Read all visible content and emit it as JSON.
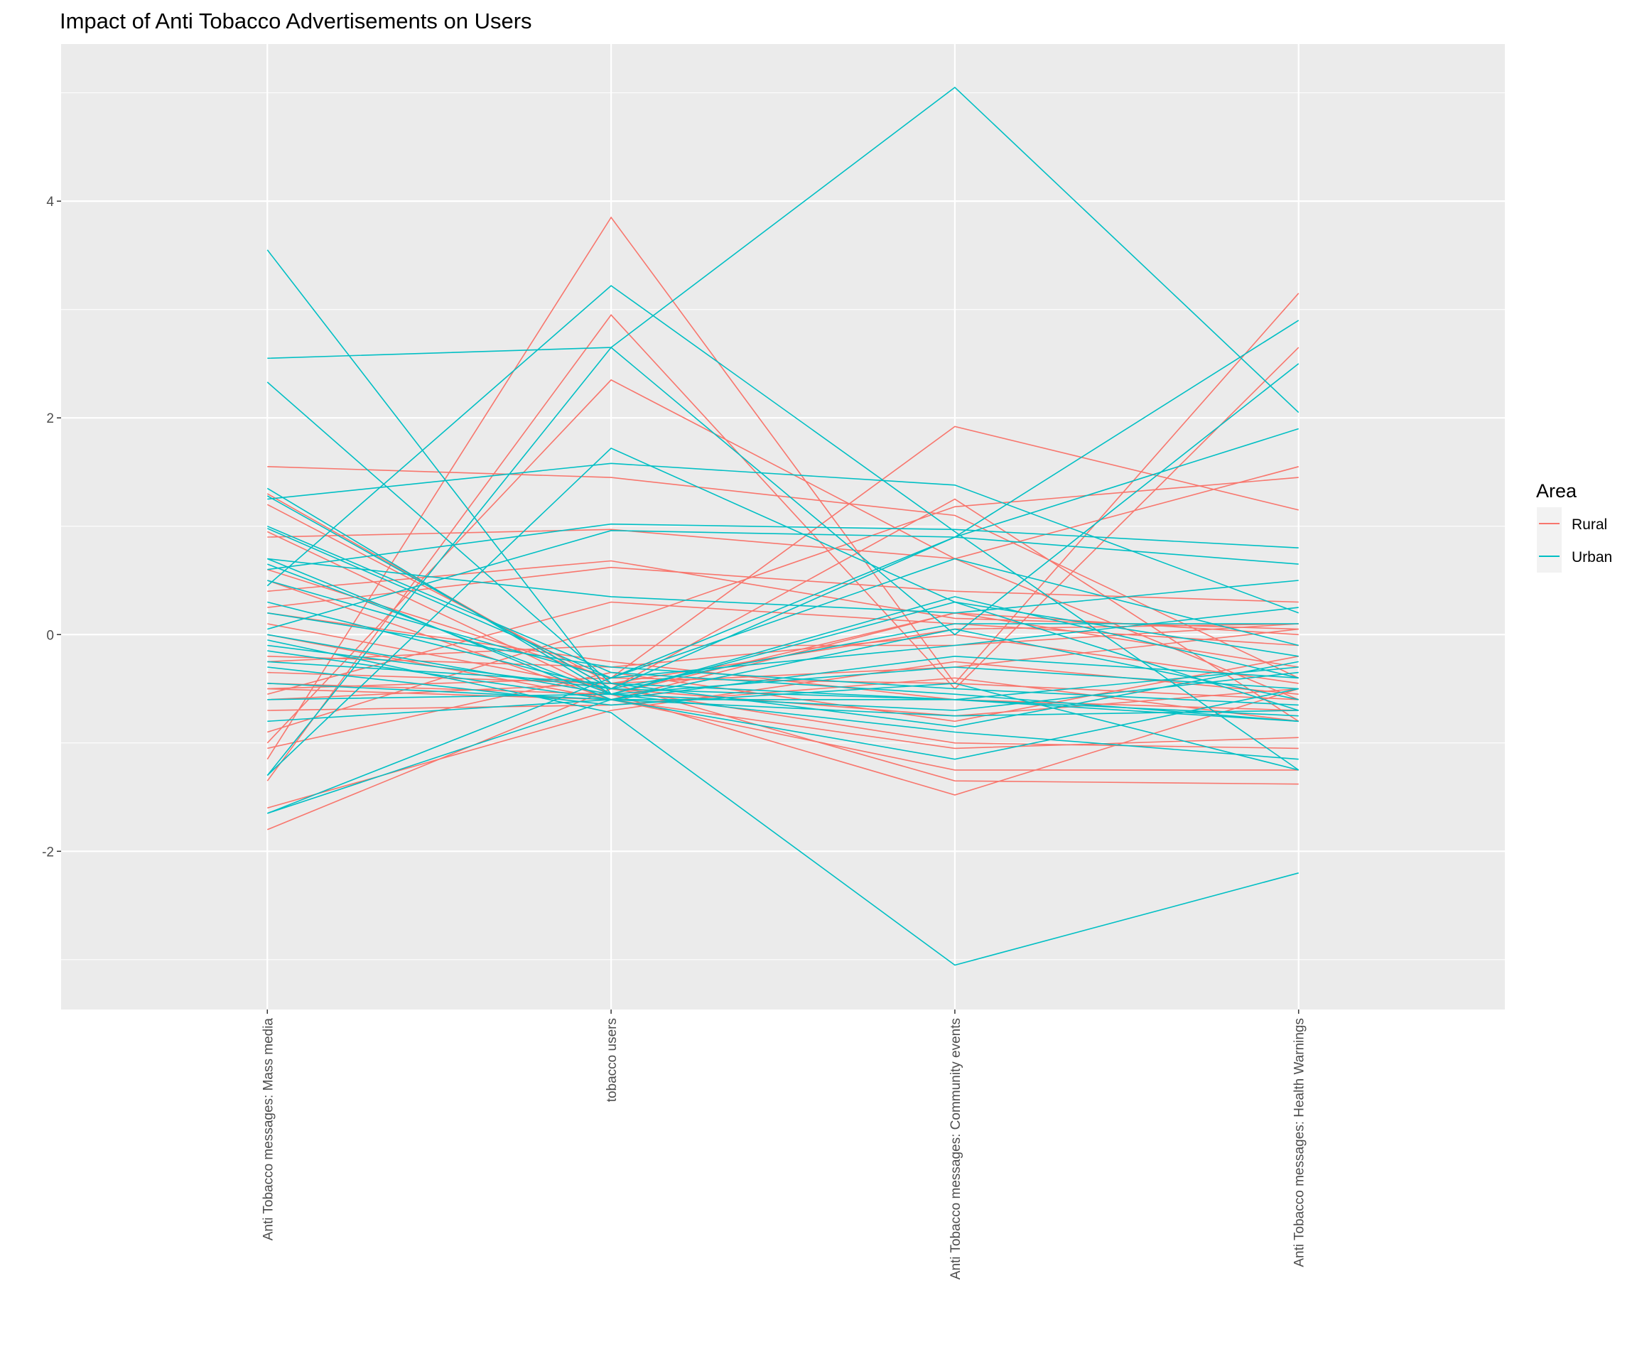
{
  "chart_data": {
    "type": "line",
    "subtype": "parallel-coordinates",
    "title": "Impact of Anti Tobacco Advertisements on Users",
    "categories": [
      "Anti Tobacco messages: Mass media",
      "tobacco users",
      "Anti Tobacco messages: Community events",
      "Anti Tobacco messages: Health Warnings"
    ],
    "xlabel": "",
    "ylabel": "",
    "ylim": [
      -3.46,
      5.45
    ],
    "yticks": [
      -2,
      0,
      2,
      4
    ],
    "ytick_labels": [
      "-2",
      "0",
      "2",
      "4"
    ],
    "grid": true,
    "legend": {
      "title": "Area",
      "position": "right",
      "entries": [
        "Rural",
        "Urban"
      ]
    },
    "colors": {
      "Rural": "#F8766D",
      "Urban": "#00BFC4"
    },
    "series": [
      {
        "name": "Urban",
        "lines": [
          [
            3.55,
            -0.55,
            -0.3,
            -0.5
          ],
          [
            2.55,
            2.65,
            5.05,
            2.05
          ],
          [
            2.33,
            -0.45,
            -0.6,
            -0.8
          ],
          [
            0.45,
            3.22,
            0.95,
            -1.25
          ],
          [
            -1.3,
            1.72,
            0.3,
            -0.7
          ],
          [
            -1.3,
            2.65,
            0.0,
            2.5
          ],
          [
            1.25,
            1.58,
            1.38,
            0.2
          ],
          [
            1.28,
            -0.5,
            0.9,
            2.9
          ],
          [
            0.98,
            -0.4,
            0.9,
            1.9
          ],
          [
            0.6,
            1.02,
            0.97,
            0.8
          ],
          [
            0.05,
            0.96,
            0.9,
            0.65
          ],
          [
            -0.05,
            -0.72,
            -3.05,
            -2.2
          ],
          [
            -1.65,
            -0.6,
            -0.2,
            -0.4
          ],
          [
            0.7,
            0.35,
            0.2,
            0.5
          ],
          [
            0.65,
            -0.55,
            -0.9,
            -1.15
          ],
          [
            -0.1,
            -0.5,
            -0.6,
            -0.3
          ],
          [
            0.2,
            -0.3,
            -0.5,
            -0.65
          ],
          [
            -0.25,
            -0.45,
            -0.85,
            -0.25
          ],
          [
            -0.45,
            -0.6,
            -1.15,
            -0.5
          ],
          [
            1.0,
            -0.35,
            -0.55,
            -0.8
          ],
          [
            0.3,
            -0.5,
            0.1,
            0.1
          ],
          [
            -0.6,
            -0.55,
            -0.7,
            -0.35
          ],
          [
            -0.8,
            -0.6,
            -0.6,
            -0.75
          ],
          [
            0.0,
            -0.55,
            0.3,
            -0.2
          ],
          [
            -0.3,
            -0.65,
            -0.45,
            -1.25
          ],
          [
            0.5,
            -0.4,
            -0.1,
            0.25
          ],
          [
            -0.15,
            -0.6,
            0.05,
            -0.6
          ],
          [
            1.35,
            -0.55,
            0.35,
            -0.4
          ],
          [
            -1.65,
            -0.4,
            0.7,
            -0.1
          ],
          [
            0.7,
            -0.6,
            -0.75,
            -0.7
          ]
        ]
      },
      {
        "name": "Rural",
        "lines": [
          [
            -1.15,
            3.85,
            -0.45,
            3.15
          ],
          [
            -1.35,
            2.95,
            -0.5,
            2.65
          ],
          [
            -1.0,
            2.35,
            0.7,
            1.55
          ],
          [
            1.55,
            1.45,
            1.1,
            -0.4
          ],
          [
            -0.5,
            -0.4,
            1.92,
            1.15
          ],
          [
            -1.8,
            -0.5,
            1.25,
            -0.8
          ],
          [
            0.9,
            0.97,
            0.7,
            -0.6
          ],
          [
            0.4,
            0.68,
            0.15,
            0.05
          ],
          [
            0.25,
            0.62,
            0.4,
            0.3
          ],
          [
            -0.55,
            0.3,
            0.1,
            -0.1
          ],
          [
            -0.9,
            0.08,
            1.18,
            1.45
          ],
          [
            1.3,
            -0.5,
            -1.0,
            -1.05
          ],
          [
            0.5,
            -0.6,
            -1.25,
            -1.25
          ],
          [
            -0.45,
            -0.55,
            -1.48,
            -0.5
          ],
          [
            -0.6,
            -0.45,
            -1.35,
            -1.38
          ],
          [
            0.0,
            -0.6,
            -1.05,
            -0.95
          ],
          [
            -0.2,
            -0.3,
            0.0,
            -0.45
          ],
          [
            -0.35,
            -0.45,
            -0.3,
            0.05
          ],
          [
            0.1,
            -0.5,
            -0.75,
            -0.5
          ],
          [
            -0.7,
            -0.65,
            -0.4,
            -0.8
          ],
          [
            -1.05,
            -0.35,
            -0.8,
            -0.2
          ],
          [
            0.95,
            -0.55,
            0.2,
            -0.3
          ],
          [
            -0.25,
            -0.1,
            -0.1,
            0.1
          ],
          [
            0.6,
            -0.4,
            -0.45,
            -0.6
          ],
          [
            -0.5,
            -0.6,
            0.2,
            0.0
          ],
          [
            -1.6,
            -0.7,
            -0.25,
            -0.55
          ],
          [
            0.2,
            -0.25,
            -0.6,
            -0.7
          ],
          [
            1.2,
            -0.45,
            0.05,
            0.1
          ]
        ]
      }
    ]
  }
}
